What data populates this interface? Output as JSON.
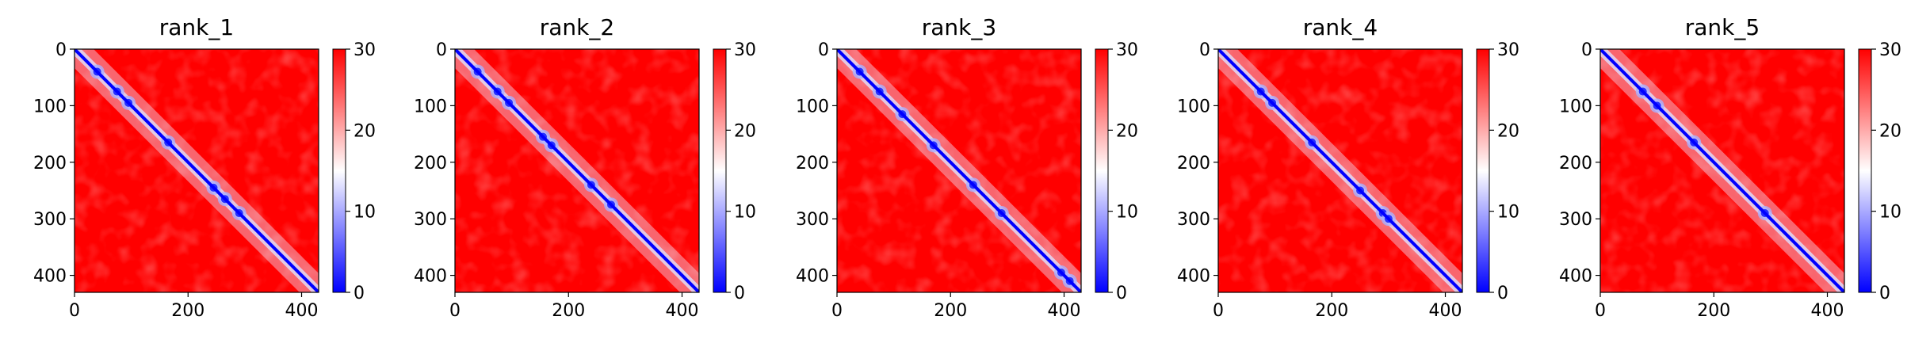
{
  "chart_data": [
    {
      "type": "heatmap",
      "title": "rank_1",
      "xlim": [
        0,
        430
      ],
      "ylim": [
        430,
        0
      ],
      "xticks": [
        0,
        200,
        400
      ],
      "yticks": [
        0,
        100,
        200,
        300,
        400
      ],
      "colorbar": {
        "ticks": [
          0,
          10,
          20,
          30
        ],
        "range": [
          0,
          30
        ],
        "colormap": "bwr",
        "low": "#0000ff",
        "mid": "#ffffff",
        "high": "#ff0000"
      },
      "diagonal_features": [
        40,
        75,
        95,
        165,
        245,
        265,
        290
      ]
    },
    {
      "type": "heatmap",
      "title": "rank_2",
      "xlim": [
        0,
        430
      ],
      "ylim": [
        430,
        0
      ],
      "xticks": [
        0,
        200,
        400
      ],
      "yticks": [
        0,
        100,
        200,
        300,
        400
      ],
      "colorbar": {
        "ticks": [
          0,
          10,
          20,
          30
        ],
        "range": [
          0,
          30
        ],
        "colormap": "bwr",
        "low": "#0000ff",
        "mid": "#ffffff",
        "high": "#ff0000"
      },
      "diagonal_features": [
        40,
        75,
        95,
        155,
        170,
        240,
        275
      ]
    },
    {
      "type": "heatmap",
      "title": "rank_3",
      "xlim": [
        0,
        430
      ],
      "ylim": [
        430,
        0
      ],
      "xticks": [
        0,
        200,
        400
      ],
      "yticks": [
        0,
        100,
        200,
        300,
        400
      ],
      "colorbar": {
        "ticks": [
          0,
          10,
          20,
          30
        ],
        "range": [
          0,
          30
        ],
        "colormap": "bwr",
        "low": "#0000ff",
        "mid": "#ffffff",
        "high": "#ff0000"
      },
      "diagonal_features": [
        40,
        75,
        115,
        170,
        240,
        290,
        395,
        410
      ]
    },
    {
      "type": "heatmap",
      "title": "rank_4",
      "xlim": [
        0,
        430
      ],
      "ylim": [
        430,
        0
      ],
      "xticks": [
        0,
        200,
        400
      ],
      "yticks": [
        0,
        100,
        200,
        300,
        400
      ],
      "colorbar": {
        "ticks": [
          0,
          10,
          20,
          30
        ],
        "range": [
          0,
          30
        ],
        "colormap": "bwr",
        "low": "#0000ff",
        "mid": "#ffffff",
        "high": "#ff0000"
      },
      "diagonal_features": [
        75,
        95,
        165,
        250,
        290,
        300
      ]
    },
    {
      "type": "heatmap",
      "title": "rank_5",
      "xlim": [
        0,
        430
      ],
      "ylim": [
        430,
        0
      ],
      "xticks": [
        0,
        200,
        400
      ],
      "yticks": [
        0,
        100,
        200,
        300,
        400
      ],
      "colorbar": {
        "ticks": [
          0,
          10,
          20,
          30
        ],
        "range": [
          0,
          30
        ],
        "colormap": "bwr",
        "low": "#0000ff",
        "mid": "#ffffff",
        "high": "#ff0000"
      },
      "diagonal_features": [
        75,
        100,
        165,
        290
      ]
    }
  ]
}
